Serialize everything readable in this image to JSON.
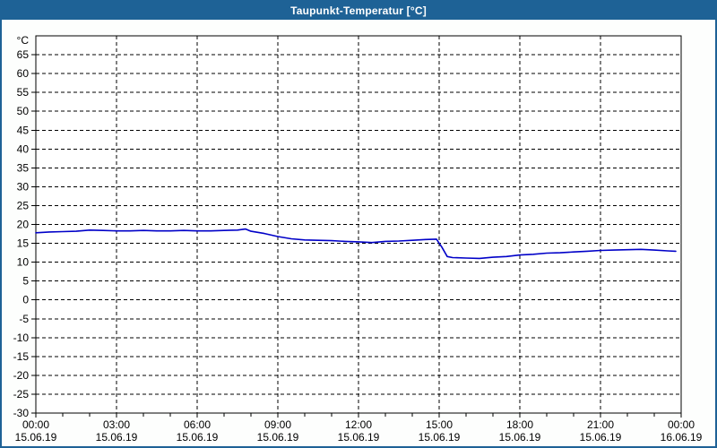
{
  "window": {
    "title": "Taupunkt-Temperatur [°C]"
  },
  "colors": {
    "frame_blue": "#1E6296",
    "titlebar_text": "#FFFFFF",
    "window_background": "#FDFEFD",
    "plot_background": "#FFFFFF",
    "grid_line": "#000000",
    "axis_line": "#000000",
    "tick_label": "#000000",
    "series_line": "#0000C8"
  },
  "chart_data": {
    "type": "line",
    "title": "Taupunkt-Temperatur [°C]",
    "y_unit_label": "°C",
    "ylim": [
      -30,
      70
    ],
    "y_ticks": [
      65,
      60,
      55,
      50,
      45,
      40,
      35,
      30,
      25,
      20,
      15,
      10,
      5,
      0,
      -5,
      -10,
      -15,
      -20,
      -25,
      -30
    ],
    "xlim_hours": [
      0,
      24
    ],
    "x_minor_tick_hours": 1,
    "x_major_ticks": [
      {
        "hour": 0,
        "time": "00:00",
        "date": "15.06.19"
      },
      {
        "hour": 3,
        "time": "03:00",
        "date": "15.06.19"
      },
      {
        "hour": 6,
        "time": "06:00",
        "date": "15.06.19"
      },
      {
        "hour": 9,
        "time": "09:00",
        "date": "15.06.19"
      },
      {
        "hour": 12,
        "time": "12:00",
        "date": "15.06.19"
      },
      {
        "hour": 15,
        "time": "15:00",
        "date": "15.06.19"
      },
      {
        "hour": 18,
        "time": "18:00",
        "date": "15.06.19"
      },
      {
        "hour": 21,
        "time": "21:00",
        "date": "15.06.19"
      },
      {
        "hour": 24,
        "time": "00:00",
        "date": "16.06.19"
      }
    ],
    "grid": "dashed",
    "legend": "none",
    "series": [
      {
        "name": "Taupunkt-Temperatur",
        "color": "#0000C8",
        "x_hours": [
          0,
          0.5,
          1,
          1.5,
          2,
          2.5,
          3,
          3.5,
          4,
          4.5,
          5,
          5.5,
          6,
          6.5,
          7,
          7.5,
          7.8,
          8,
          8.5,
          9,
          9.5,
          10,
          10.5,
          11,
          11.5,
          12,
          12.5,
          13,
          13.5,
          14,
          14.5,
          14.9,
          15.1,
          15.3,
          15.5,
          16,
          16.5,
          17,
          17.5,
          18,
          18.5,
          19,
          19.5,
          20,
          20.5,
          21,
          21.5,
          22,
          22.5,
          23,
          23.5,
          23.8
        ],
        "y_celsius": [
          17.8,
          18.0,
          18.1,
          18.2,
          18.5,
          18.4,
          18.3,
          18.3,
          18.4,
          18.3,
          18.3,
          18.4,
          18.3,
          18.3,
          18.4,
          18.5,
          18.8,
          18.2,
          17.6,
          16.8,
          16.2,
          15.9,
          15.8,
          15.7,
          15.5,
          15.4,
          15.2,
          15.5,
          15.6,
          15.8,
          16.0,
          16.1,
          14.0,
          11.5,
          11.2,
          11.1,
          11.0,
          11.3,
          11.5,
          11.9,
          12.1,
          12.4,
          12.5,
          12.7,
          12.9,
          13.1,
          13.2,
          13.3,
          13.4,
          13.2,
          13.0,
          12.9
        ]
      }
    ]
  }
}
